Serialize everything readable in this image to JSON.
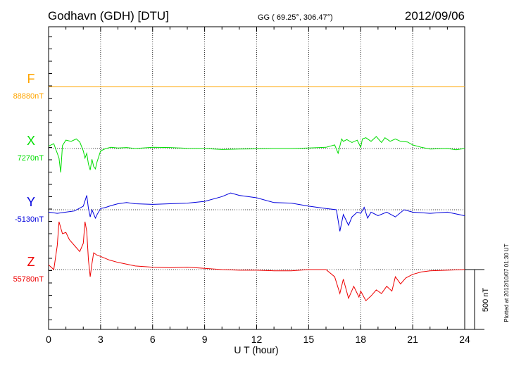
{
  "header": {
    "station": "Godhavn (GDH)  [DTU]",
    "coords": "GG ( 69.25°, 306.47°)",
    "date": "2012/09/06"
  },
  "footer": {
    "plotted": "Plotted at 2012/10/07 01:30 UT"
  },
  "chart_data": {
    "type": "line",
    "title": "Godhavn (GDH)  [DTU]",
    "xlabel": "U T (hour)",
    "ylabel": "",
    "xlim": [
      0,
      24
    ],
    "x_ticks": [
      0,
      3,
      6,
      9,
      12,
      15,
      18,
      21,
      24
    ],
    "x_tick_labels": [
      "0",
      "3",
      "6",
      "9",
      "12",
      "15",
      "18",
      "21",
      "24"
    ],
    "grid": true,
    "scale_bar": {
      "value": 500,
      "label": "500 nT"
    },
    "colors": {
      "F": "#ffa500",
      "X": "#00dd00",
      "Y": "#0000dd",
      "Z": "#ee0000"
    },
    "series": [
      {
        "name": "F",
        "baseline_label": "88880nT",
        "baseline": 88880,
        "x": [
          0,
          24
        ],
        "y": [
          0,
          0
        ]
      },
      {
        "name": "X",
        "baseline_label": "7270nT",
        "baseline": 7270,
        "x": [
          0,
          0.3,
          0.6,
          0.7,
          0.8,
          1.0,
          1.3,
          1.6,
          1.8,
          2.0,
          2.1,
          2.2,
          2.3,
          2.4,
          2.5,
          2.6,
          2.7,
          2.8,
          3.0,
          3.3,
          3.6,
          4,
          4.5,
          5,
          6,
          7,
          8,
          9,
          10,
          11,
          12,
          13,
          14,
          15,
          16,
          16.5,
          16.7,
          16.9,
          17.0,
          17.2,
          17.5,
          17.8,
          18.0,
          18.1,
          18.3,
          18.6,
          18.9,
          19.2,
          19.4,
          19.7,
          20.0,
          20.3,
          20.7,
          21.0,
          21.5,
          22,
          23,
          23.5,
          24
        ],
        "y": [
          20,
          40,
          -80,
          -200,
          25,
          70,
          60,
          80,
          55,
          -20,
          -80,
          -40,
          -130,
          -180,
          -90,
          -150,
          -170,
          -110,
          -20,
          0,
          10,
          5,
          8,
          0,
          10,
          8,
          2,
          0,
          -8,
          -5,
          -3,
          0,
          0,
          5,
          10,
          30,
          -40,
          80,
          60,
          75,
          50,
          70,
          10,
          80,
          90,
          60,
          100,
          50,
          90,
          60,
          80,
          60,
          55,
          30,
          10,
          -5,
          0,
          -10,
          0
        ]
      },
      {
        "name": "Y",
        "baseline_label": "-5130nT",
        "baseline": -5130,
        "x": [
          0,
          0.5,
          1.0,
          1.5,
          2.0,
          2.2,
          2.3,
          2.4,
          2.5,
          2.7,
          2.8,
          3.0,
          3.3,
          3.6,
          4,
          4.5,
          5,
          6,
          7,
          8,
          9,
          10,
          10.5,
          11,
          12,
          13,
          14,
          15,
          16,
          16.6,
          16.8,
          17.0,
          17.3,
          17.5,
          17.8,
          18.0,
          18.2,
          18.4,
          18.6,
          19.0,
          19.5,
          20.0,
          20.5,
          21,
          22,
          23,
          24
        ],
        "y": [
          -20,
          -30,
          -20,
          -10,
          30,
          120,
          10,
          -60,
          0,
          -70,
          -40,
          10,
          20,
          35,
          50,
          60,
          50,
          45,
          50,
          55,
          70,
          110,
          140,
          120,
          100,
          60,
          55,
          30,
          10,
          0,
          -180,
          -40,
          -130,
          -60,
          -20,
          -30,
          20,
          -70,
          -20,
          -50,
          -20,
          -60,
          0,
          -20,
          -30,
          -20,
          -50
        ]
      },
      {
        "name": "Z",
        "baseline_label": "55780nT",
        "baseline": 55780,
        "x": [
          0,
          0.3,
          0.5,
          0.6,
          0.7,
          0.8,
          1.0,
          1.2,
          1.5,
          1.8,
          2.0,
          2.1,
          2.2,
          2.3,
          2.4,
          2.5,
          2.6,
          2.8,
          3.0,
          3.5,
          4,
          5,
          6,
          7,
          8,
          9,
          10,
          11,
          12,
          13,
          14,
          15,
          16,
          16.5,
          16.8,
          17.0,
          17.3,
          17.6,
          17.9,
          18.0,
          18.3,
          18.6,
          18.9,
          19.2,
          19.5,
          19.8,
          20.0,
          20.3,
          20.6,
          21.0,
          21.5,
          22,
          23,
          24
        ],
        "y": [
          40,
          0,
          200,
          400,
          350,
          300,
          310,
          250,
          200,
          150,
          220,
          400,
          320,
          80,
          -60,
          50,
          140,
          120,
          110,
          80,
          60,
          30,
          20,
          15,
          20,
          10,
          0,
          -5,
          -5,
          -10,
          -10,
          0,
          0,
          -60,
          -200,
          -80,
          -240,
          -140,
          -230,
          -180,
          -260,
          -220,
          -170,
          -200,
          -140,
          -180,
          -60,
          -120,
          -70,
          -40,
          -20,
          -10,
          -5,
          0
        ]
      }
    ]
  }
}
